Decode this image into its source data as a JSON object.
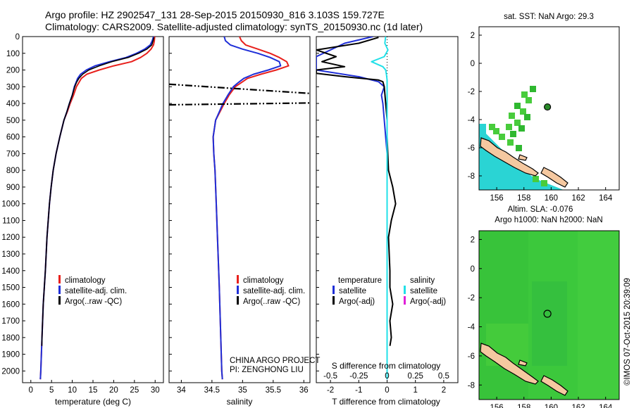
{
  "header": {
    "line1": "Argo profile: HZ 2902547_131 28-Sep-2015 20150930_816 3.103S 159.727E",
    "line2": "Climatology: CARS2009. Satellite-adjusted climatology: synTS_20150930.nc (1d later)"
  },
  "colors": {
    "climatology": "#e8201c",
    "satellite": "#1f2fd8",
    "argo": "#000000",
    "salinity_satellite": "#22e0e8",
    "salinity_argo_adj": "#e020d8",
    "sea_green": "#3cc83c",
    "land": "#f5c8a0",
    "warm_water": "#2ad4d4"
  },
  "depth_axis": {
    "ticks": [
      "0",
      "100",
      "200",
      "300",
      "400",
      "500",
      "600",
      "700",
      "800",
      "900",
      "1000",
      "1100",
      "1200",
      "1300",
      "1400",
      "1500",
      "1600",
      "1700",
      "1800",
      "1900",
      "2000"
    ],
    "ylim": [
      0,
      2070
    ]
  },
  "chart_data": [
    {
      "type": "line",
      "name": "temperature",
      "xlabel": "temperature (deg C)",
      "xlim": [
        -2,
        32
      ],
      "xticks": [
        "0",
        "5",
        "10",
        "15",
        "20",
        "25",
        "30"
      ],
      "legend": [
        "climatology",
        "satellite-adj. clim.",
        "Argo(..raw -QC)"
      ],
      "legend_location": "lower-middle",
      "series": [
        {
          "name": "climatology",
          "depth": [
            0,
            25,
            50,
            75,
            100,
            125,
            150,
            175,
            200,
            225,
            250,
            275,
            300,
            350,
            400,
            450,
            500,
            600,
            700,
            800,
            900,
            1000,
            1200,
            1400,
            1600,
            1800,
            2000,
            2050
          ],
          "values": [
            29.9,
            29.8,
            29.6,
            29.0,
            28.0,
            26.5,
            24.3,
            20.0,
            16.5,
            13.5,
            12.2,
            11.6,
            11.0,
            10.3,
            9.5,
            8.8,
            8.0,
            7.0,
            6.1,
            5.4,
            4.9,
            4.5,
            3.9,
            3.5,
            3.0,
            2.7,
            2.4,
            2.3
          ]
        },
        {
          "name": "satellite-adj. clim.",
          "depth": [
            0,
            25,
            50,
            75,
            100,
            125,
            150,
            175,
            200,
            225,
            250,
            275,
            300,
            350,
            400,
            450,
            500,
            600,
            700,
            800,
            900,
            1000,
            1200,
            1400,
            1600,
            1800,
            2000,
            2050
          ],
          "values": [
            29.6,
            29.3,
            28.8,
            27.5,
            25.5,
            23.0,
            19.0,
            15.5,
            13.4,
            12.0,
            11.3,
            10.9,
            10.5,
            10.0,
            9.3,
            8.7,
            8.0,
            7.0,
            6.1,
            5.4,
            4.9,
            4.5,
            3.9,
            3.5,
            3.0,
            2.7,
            2.4,
            2.3
          ]
        },
        {
          "name": "Argo(..raw -QC)",
          "depth": [
            5,
            25,
            50,
            75,
            100,
            125,
            150,
            175,
            200,
            225,
            250,
            275,
            300,
            350,
            400,
            450,
            500,
            600,
            700,
            800,
            900,
            1000,
            1200,
            1400,
            1600,
            1800,
            1850
          ],
          "values": [
            29.7,
            29.5,
            29.2,
            28.0,
            26.0,
            23.5,
            19.5,
            16.5,
            14.0,
            12.5,
            11.6,
            11.0,
            10.6,
            10.0,
            9.3,
            8.7,
            8.0,
            7.0,
            6.1,
            5.4,
            4.9,
            4.5,
            3.9,
            3.5,
            3.0,
            2.7,
            2.65
          ]
        }
      ]
    },
    {
      "type": "line",
      "name": "salinity",
      "xlabel": "salinity",
      "xlim": [
        33.8,
        36.1
      ],
      "xticks": [
        "34",
        "34.5",
        "35",
        "35.5",
        "36"
      ],
      "legend": [
        "climatology",
        "satellite-adj. clim.",
        "Argo(..raw -QC)"
      ],
      "legend_location": "lower-middle",
      "annotations": [
        "CHINA ARGO PROJECT",
        "PI: ZENGHONG LIU"
      ],
      "series": [
        {
          "name": "climatology",
          "depth": [
            0,
            25,
            50,
            75,
            100,
            125,
            150,
            175,
            200,
            225,
            250,
            275,
            300,
            350,
            400,
            450,
            500,
            600,
            700,
            800,
            1000,
            1200,
            1500,
            2000,
            2050
          ],
          "values": [
            34.95,
            34.98,
            35.05,
            35.25,
            35.45,
            35.6,
            35.72,
            35.75,
            35.55,
            35.3,
            35.08,
            34.98,
            34.88,
            34.78,
            34.7,
            34.63,
            34.56,
            34.52,
            34.53,
            34.55,
            34.57,
            34.59,
            34.62,
            34.66,
            34.67
          ]
        },
        {
          "name": "satellite-adj. clim.",
          "depth": [
            0,
            25,
            50,
            75,
            100,
            125,
            150,
            175,
            200,
            225,
            250,
            275,
            300,
            350,
            400,
            450,
            500,
            600,
            700,
            800,
            1000,
            1200,
            1500,
            2000,
            2050
          ],
          "values": [
            34.7,
            34.72,
            34.8,
            35.0,
            35.25,
            35.45,
            35.6,
            35.62,
            35.42,
            35.18,
            35.02,
            34.93,
            34.85,
            34.76,
            34.68,
            34.62,
            34.56,
            34.52,
            34.53,
            34.55,
            34.57,
            34.59,
            34.62,
            34.66,
            34.67
          ]
        },
        {
          "name": "Argo(..raw -QC)",
          "segments": [
            {
              "depth": [
                285,
                340
              ],
              "values": [
                33.8,
                36.1
              ]
            },
            {
              "depth": [
                408,
                397
              ],
              "values": [
                33.8,
                36.1
              ]
            }
          ]
        }
      ]
    },
    {
      "type": "line",
      "name": "difference",
      "xlabel_bottom": "T difference from climatology",
      "xlabel_top": "S difference from climatology",
      "xlim": [
        -2.5,
        2.5
      ],
      "xticks_bottom": [
        "-2",
        "-1",
        "0",
        "1",
        "2"
      ],
      "xticks_top": [
        "-0.5",
        "-0.25",
        "0",
        "0.25",
        "0.5"
      ],
      "legend": [
        "temperature",
        "satellite",
        "Argo(-adj)",
        "salinity",
        "satellite",
        "Argo(-adj)"
      ],
      "legend_location": "lower-middle",
      "series": [
        {
          "name": "temperature satellite",
          "depth": [
            0,
            40,
            80,
            120,
            160,
            200,
            240,
            270,
            300,
            350,
            400,
            500,
            600,
            700,
            800,
            1000,
            1200,
            1500,
            2000,
            2050
          ],
          "values": [
            -0.5,
            -1.5,
            -2.0,
            -2.5,
            -2.5,
            -2.5,
            -1.0,
            -0.3,
            -0.1,
            -0.2,
            -0.15,
            -0.1,
            -0.05,
            0,
            0,
            0,
            0,
            0,
            0,
            0
          ]
        },
        {
          "name": "temperature Argo(-adj)",
          "depth": [
            5,
            40,
            80,
            120,
            150,
            180,
            200,
            220,
            240,
            260,
            270,
            300,
            400,
            500,
            600,
            800,
            900,
            1000,
            1100,
            1200,
            1400,
            1500,
            1600,
            1700,
            1800,
            1850
          ],
          "values": [
            -0.3,
            -1.0,
            -2.5,
            -1.8,
            -2.3,
            -1.5,
            -2.5,
            -2.5,
            -1.5,
            -0.3,
            -0.15,
            -0.1,
            -0.05,
            0,
            0,
            0.05,
            0.2,
            0.3,
            0.15,
            0.05,
            0.1,
            0.1,
            0.2,
            0.1,
            0.15,
            0.1
          ]
        },
        {
          "name": "salinity satellite",
          "depth": [
            0,
            40,
            80,
            120,
            150,
            180,
            200,
            230,
            260,
            300,
            400,
            500,
            700,
            1000,
            1500,
            2000,
            2050
          ],
          "values": [
            -0.05,
            -0.08,
            0.03,
            -0.1,
            -0.55,
            -0.15,
            -0.05,
            -0.02,
            0,
            0,
            0,
            0,
            0,
            0,
            0,
            0,
            0
          ]
        }
      ]
    }
  ],
  "maps": {
    "sst": {
      "title": "sat. SST: NaN Argo: 29.3",
      "xticks": [
        "156",
        "158",
        "160",
        "162",
        "164"
      ],
      "yticks": [
        "2",
        "0",
        "-2",
        "-4",
        "-6",
        "-8"
      ],
      "xlim": [
        154.7,
        165
      ],
      "ylim": [
        -9,
        2.6
      ],
      "argo_position": {
        "lon": 159.727,
        "lat": -3.103
      }
    },
    "sla": {
      "title_line1": "Altim. SLA: -0.076",
      "title_line2": "Argo h1000: NaN h2000: NaN",
      "xticks": [
        "156",
        "158",
        "160",
        "162",
        "164"
      ],
      "yticks": [
        "2",
        "0",
        "-2",
        "-4",
        "-6",
        "-8"
      ],
      "xlim": [
        154.7,
        165
      ],
      "ylim": [
        -9,
        2.6
      ],
      "argo_position": {
        "lon": 159.727,
        "lat": -3.103
      }
    }
  },
  "credit": "©IMOS 07-Oct-2015 20:39:09"
}
